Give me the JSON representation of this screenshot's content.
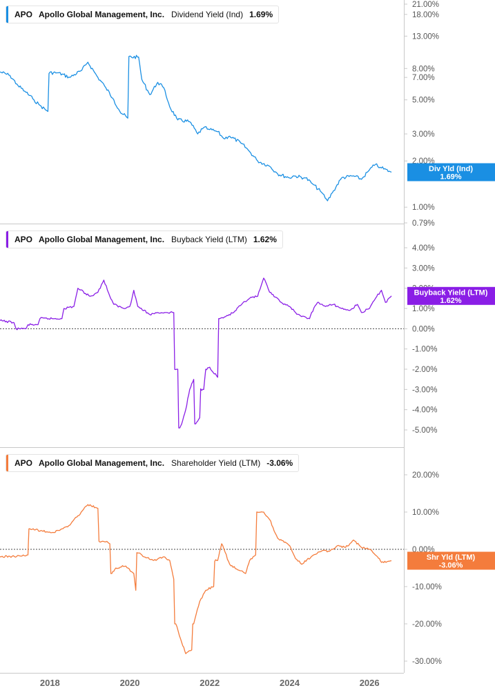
{
  "panels": [
    {
      "ticker": "APO",
      "company": "Apollo Global Management, Inc.",
      "metric": "Dividend Yield (Ind)",
      "value": "1.69%",
      "color": "#1a8fe3",
      "tag_label": "Div Yld (Ind)",
      "tag_value": "1.69%"
    },
    {
      "ticker": "APO",
      "company": "Apollo Global Management, Inc.",
      "metric": "Buyback Yield (LTM)",
      "value": "1.62%",
      "color": "#8a1ee6",
      "tag_label": "Buyback Yield (LTM)",
      "tag_value": "1.62%"
    },
    {
      "ticker": "APO",
      "company": "Apollo Global Management, Inc.",
      "metric": "Shareholder Yield (LTM)",
      "value": "-3.06%",
      "color": "#f47c3c",
      "tag_label": "Shr Yld (LTM)",
      "tag_value": "-3.06%"
    }
  ],
  "x_axis": {
    "labels": [
      "2018",
      "2020",
      "2022",
      "2024",
      "2026"
    ],
    "values": [
      2018,
      2020,
      2022,
      2024,
      2026
    ]
  },
  "chart_data": [
    {
      "type": "line",
      "title": "Dividend Yield (Ind)",
      "y_scale": "log",
      "ylim": [
        0.79,
        21.0
      ],
      "y_ticks": [
        21,
        18,
        13,
        8,
        7,
        5,
        3,
        2,
        1,
        0.79
      ],
      "y_tick_labels": [
        "21.00%",
        "18.00%",
        "13.00%",
        "8.00%",
        "7.00%",
        "5.00%",
        "3.00%",
        "2.00%",
        "1.00%",
        "0.79%"
      ],
      "series": [
        {
          "x": [
            2016.75,
            2017.0,
            2017.2,
            2017.4,
            2017.6,
            2017.75,
            2017.95,
            2018.2,
            2018.5,
            2018.8,
            2018.95,
            2019.2,
            2019.4,
            2019.6,
            2019.75,
            2019.95,
            2020.22,
            2020.3,
            2020.5,
            2020.7,
            2020.85,
            2021.0,
            2021.2,
            2021.5,
            2021.7,
            2021.85,
            2022.0,
            2022.2,
            2022.35,
            2022.5,
            2022.8,
            2023.0,
            2023.2,
            2023.5,
            2023.7,
            2024.0,
            2024.1,
            2024.4,
            2024.6,
            2024.8,
            2024.95,
            2025.1,
            2025.3,
            2025.6,
            2025.8,
            2026.0,
            2026.15,
            2026.3,
            2026.55
          ],
          "values": [
            7.6,
            7.2,
            6.2,
            5.6,
            5.0,
            4.6,
            4.2,
            7.5,
            7.0,
            7.8,
            8.8,
            7.0,
            6.0,
            5.0,
            4.2,
            3.8,
            9.5,
            6.8,
            5.4,
            6.5,
            6.0,
            4.5,
            3.7,
            3.6,
            3.0,
            3.3,
            3.2,
            3.1,
            2.8,
            2.9,
            2.6,
            2.3,
            2.0,
            1.85,
            1.65,
            1.55,
            1.6,
            1.55,
            1.4,
            1.25,
            1.1,
            1.28,
            1.55,
            1.6,
            1.52,
            1.75,
            1.9,
            1.8,
            1.69
          ]
        }
      ]
    },
    {
      "type": "line",
      "title": "Buyback Yield (LTM)",
      "ylim": [
        -5.0,
        4.0
      ],
      "y_ticks": [
        4,
        3,
        2,
        1,
        0,
        -1,
        -2,
        -3,
        -4,
        -5
      ],
      "y_tick_labels": [
        "4.00%",
        "3.00%",
        "2.00%",
        "1.00%",
        "0.00%",
        "-1.00%",
        "-2.00%",
        "-3.00%",
        "-4.00%",
        "-5.00%"
      ],
      "reference_line": 0,
      "series": [
        {
          "x": [
            2016.75,
            2017.1,
            2017.15,
            2017.4,
            2017.45,
            2017.7,
            2017.75,
            2018.3,
            2018.35,
            2018.6,
            2018.7,
            2019.0,
            2019.2,
            2019.35,
            2019.5,
            2019.6,
            2019.85,
            2020.0,
            2020.1,
            2020.2,
            2020.5,
            2020.7,
            2020.9,
            2021.1,
            2021.2,
            2021.25,
            2021.3,
            2021.4,
            2021.5,
            2021.6,
            2021.65,
            2021.75,
            2021.85,
            2021.9,
            2022.0,
            2022.2,
            2022.25,
            2022.4,
            2022.6,
            2022.8,
            2023.0,
            2023.2,
            2023.35,
            2023.5,
            2023.7,
            2023.85,
            2024.0,
            2024.15,
            2024.3,
            2024.5,
            2024.55,
            2024.7,
            2024.9,
            2025.1,
            2025.3,
            2025.5,
            2025.7,
            2025.8,
            2026.0,
            2026.15,
            2026.3,
            2026.4,
            2026.55
          ],
          "values": [
            0.4,
            0.3,
            0.0,
            0.0,
            0.2,
            0.2,
            0.5,
            0.5,
            1.0,
            1.1,
            2.0,
            1.6,
            1.8,
            2.4,
            1.6,
            1.2,
            1.0,
            1.1,
            1.9,
            1.1,
            0.7,
            0.8,
            0.8,
            0.8,
            -2.0,
            -4.9,
            -4.7,
            -4.0,
            -3.0,
            -2.5,
            -4.7,
            -4.4,
            -3.0,
            -2.0,
            -1.9,
            -2.4,
            0.5,
            0.6,
            0.8,
            1.2,
            1.5,
            1.6,
            2.5,
            1.8,
            1.5,
            1.2,
            1.1,
            0.8,
            0.6,
            0.5,
            0.8,
            1.3,
            1.1,
            1.2,
            1.0,
            0.9,
            1.2,
            0.8,
            1.0,
            1.5,
            1.9,
            1.3,
            1.62
          ]
        }
      ]
    },
    {
      "type": "line",
      "title": "Shareholder Yield (LTM)",
      "ylim": [
        -30.0,
        20.0
      ],
      "y_ticks": [
        20,
        10,
        0,
        -10,
        -20,
        -30
      ],
      "y_tick_labels": [
        "20.00%",
        "10.00%",
        "0.00%",
        "-10.00%",
        "-20.00%",
        "-30.00%"
      ],
      "reference_line": 0,
      "series": [
        {
          "x": [
            2016.75,
            2017.3,
            2017.45,
            2017.5,
            2017.8,
            2018.1,
            2018.3,
            2018.5,
            2018.7,
            2018.95,
            2019.2,
            2019.4,
            2019.5,
            2019.55,
            2019.65,
            2019.9,
            2020.1,
            2020.15,
            2020.25,
            2020.3,
            2020.6,
            2020.85,
            2021.0,
            2021.1,
            2021.15,
            2021.3,
            2021.4,
            2021.55,
            2021.6,
            2021.75,
            2021.9,
            2022.1,
            2022.2,
            2022.3,
            2022.5,
            2022.7,
            2022.9,
            2023.0,
            2023.15,
            2023.35,
            2023.5,
            2023.7,
            2024.0,
            2024.15,
            2024.3,
            2024.6,
            2024.8,
            2025.0,
            2025.2,
            2025.4,
            2025.6,
            2025.8,
            2026.0,
            2026.2,
            2026.3,
            2026.55
          ],
          "values": [
            -2.0,
            -1.8,
            -1.5,
            5.5,
            5.0,
            4.5,
            5.5,
            6.5,
            9.0,
            12.0,
            11.0,
            2.0,
            1.5,
            -6.5,
            -5.0,
            -4.5,
            -6.5,
            -11.0,
            -1.0,
            -1.5,
            -3.0,
            -2.0,
            -3.0,
            -8.0,
            -20.0,
            -25.0,
            -28.0,
            -27.0,
            -20.0,
            -14.0,
            -11.0,
            -10.0,
            -3.0,
            1.5,
            -4.0,
            -5.5,
            -6.5,
            -3.0,
            -1.5,
            10.0,
            8.0,
            3.0,
            1.0,
            -2.5,
            -4.0,
            -1.5,
            -0.5,
            -0.5,
            1.0,
            0.5,
            2.5,
            0.5,
            0.0,
            -2.0,
            -3.5,
            -3.06
          ]
        }
      ]
    }
  ]
}
